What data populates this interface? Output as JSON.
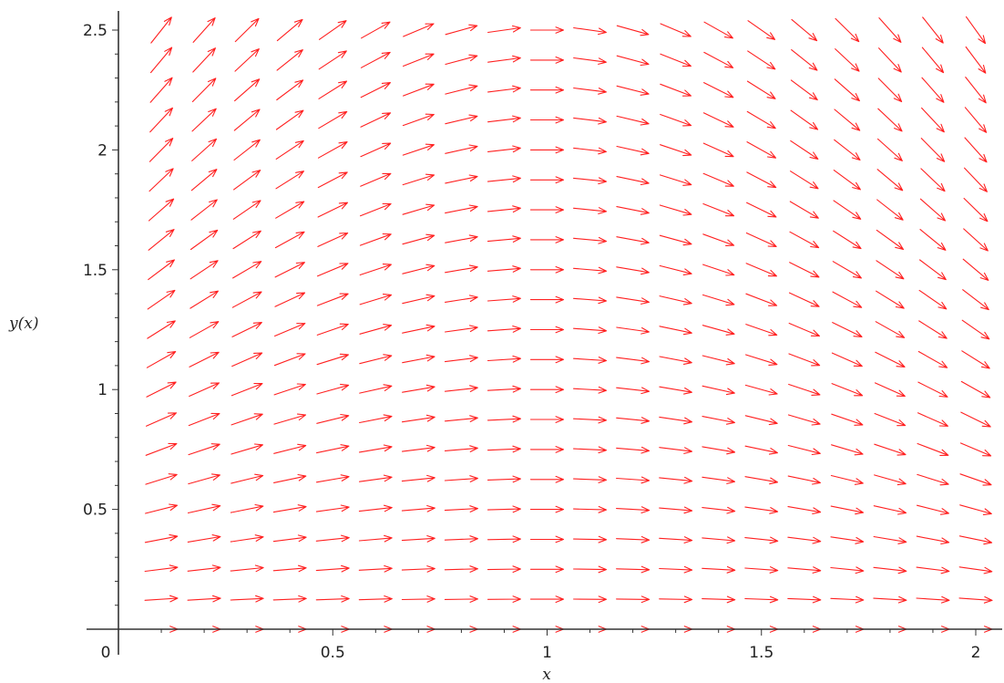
{
  "chart_data": {
    "type": "direction-field",
    "xlabel": "x",
    "ylabel": "y(x)",
    "xlim": [
      0,
      2.05
    ],
    "ylim": [
      0,
      2.55
    ],
    "x_ticks": [
      {
        "value": 0,
        "label": "0"
      },
      {
        "value": 0.5,
        "label": "0.5"
      },
      {
        "value": 1,
        "label": "1"
      },
      {
        "value": 1.5,
        "label": "1.5"
      },
      {
        "value": 2,
        "label": "2"
      }
    ],
    "y_ticks": [
      {
        "value": 0.5,
        "label": "0.5"
      },
      {
        "value": 1,
        "label": "1"
      },
      {
        "value": 1.5,
        "label": "1.5"
      },
      {
        "value": 2,
        "label": "2"
      },
      {
        "value": 2.5,
        "label": "2.5"
      }
    ],
    "minor_step": 0.1,
    "arrow_grid": {
      "x_start": 0.1,
      "x_step": 0.1,
      "x_count": 20,
      "y_start": 0.0,
      "y_step": 0.125,
      "y_count": 21
    },
    "slope": "y * (1 - x)",
    "arrow_color": "#ff2020",
    "axis_color": "#333333"
  }
}
